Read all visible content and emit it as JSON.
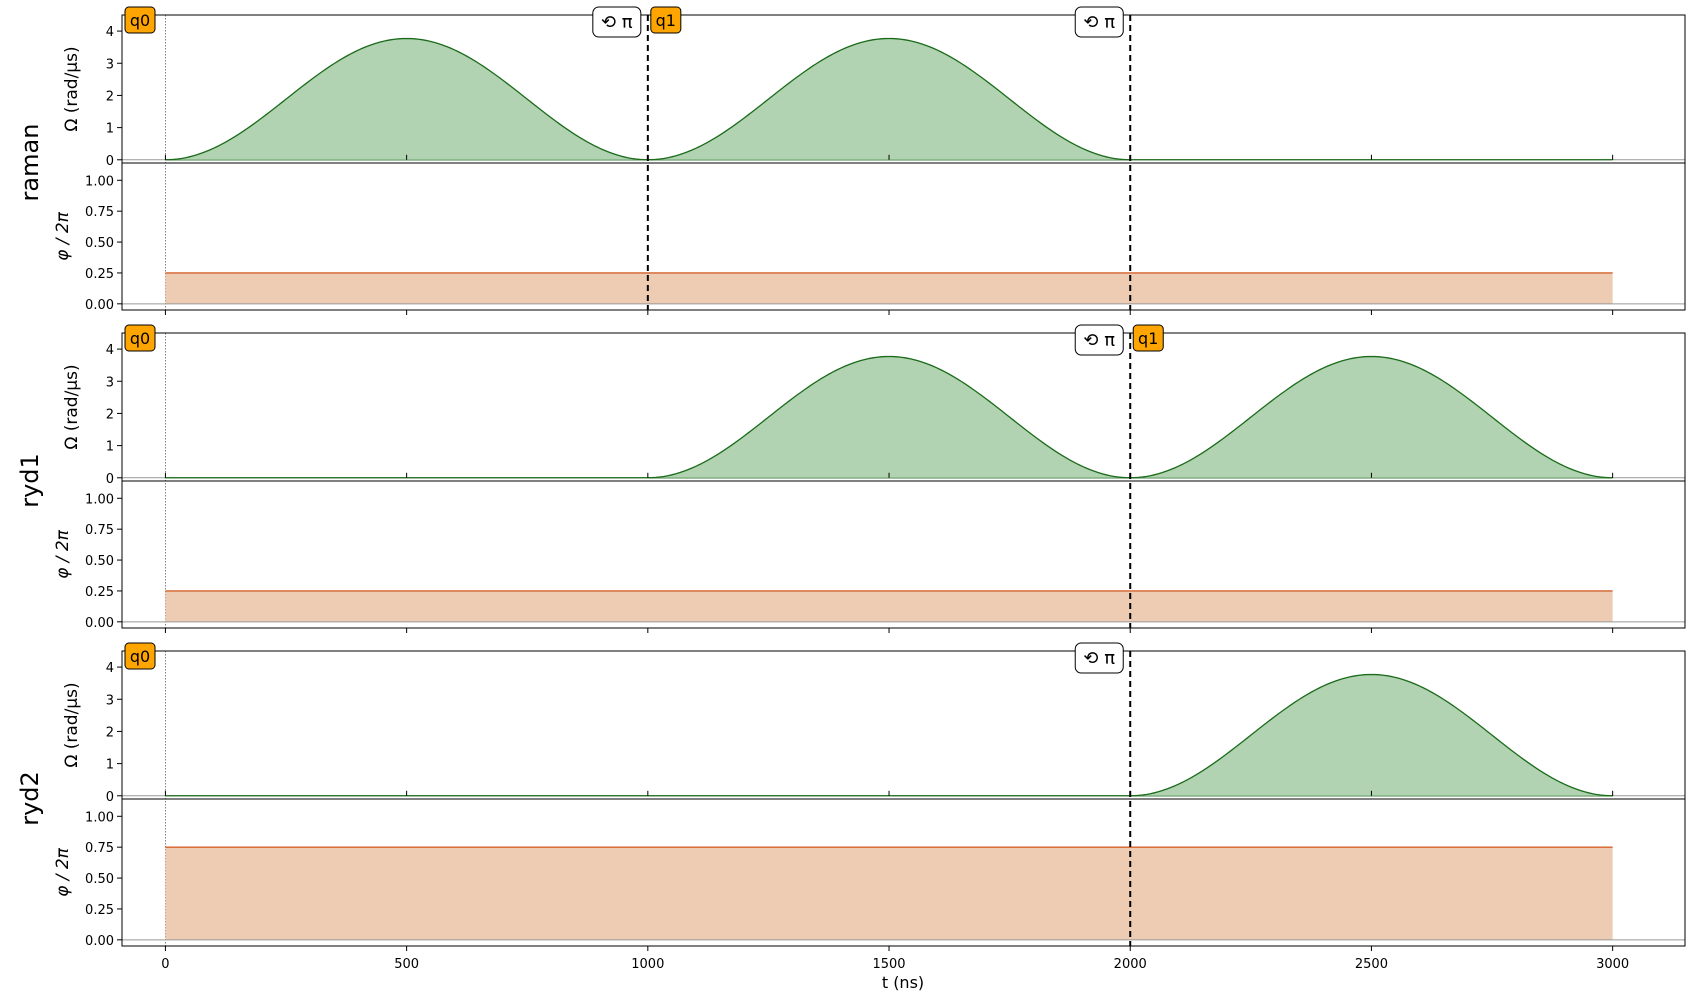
{
  "chart_data": {
    "type": "area",
    "x_domain": [
      -90,
      3150
    ],
    "x_ticks": [
      0,
      500,
      1000,
      1500,
      2000,
      2500,
      3000
    ],
    "xlabel": "t (ns)",
    "omega_label": "Ω (rad/μs)",
    "phase_label": "φ / 2π",
    "omega_ylim": [
      -0.1,
      4.5
    ],
    "omega_ticks": [
      0,
      1,
      2,
      3,
      4
    ],
    "phase_ylim": [
      -0.05,
      1.14
    ],
    "phase_ticks": [
      "0.00",
      "0.25",
      "0.50",
      "0.75",
      "1.00"
    ],
    "sequence_end": 3000,
    "colors": {
      "omega_line": "#1a6b1a",
      "omega_fill": "#b1d3b1",
      "phase_line": "#d4622a",
      "phase_fill": "#eecbb3",
      "target_box": "#ffa500"
    },
    "channels": [
      {
        "name": "raman",
        "pulses": [
          {
            "start": 0,
            "end": 1000,
            "peak": 3.77
          },
          {
            "start": 1000,
            "end": 2000,
            "peak": 3.77
          }
        ],
        "phase": 0.25,
        "targets": [
          {
            "label": "q0",
            "t": 0
          },
          {
            "label": "q1",
            "t": 1000
          }
        ],
        "phase_shifts": [
          {
            "label": "⟲ π",
            "t": 1000
          },
          {
            "label": "⟲ π",
            "t": 2000
          }
        ]
      },
      {
        "name": "ryd1",
        "pulses": [
          {
            "start": 1000,
            "end": 2000,
            "peak": 3.77
          },
          {
            "start": 2000,
            "end": 3000,
            "peak": 3.77
          }
        ],
        "phase": 0.25,
        "targets": [
          {
            "label": "q0",
            "t": 0
          },
          {
            "label": "q1",
            "t": 2000
          }
        ],
        "phase_shifts": [
          {
            "label": "⟲ π",
            "t": 2000
          }
        ]
      },
      {
        "name": "ryd2",
        "pulses": [
          {
            "start": 2000,
            "end": 3000,
            "peak": 3.77
          }
        ],
        "phase": 0.75,
        "targets": [
          {
            "label": "q0",
            "t": 0
          }
        ],
        "phase_shifts": [
          {
            "label": "⟲ π",
            "t": 2000
          }
        ]
      }
    ]
  }
}
